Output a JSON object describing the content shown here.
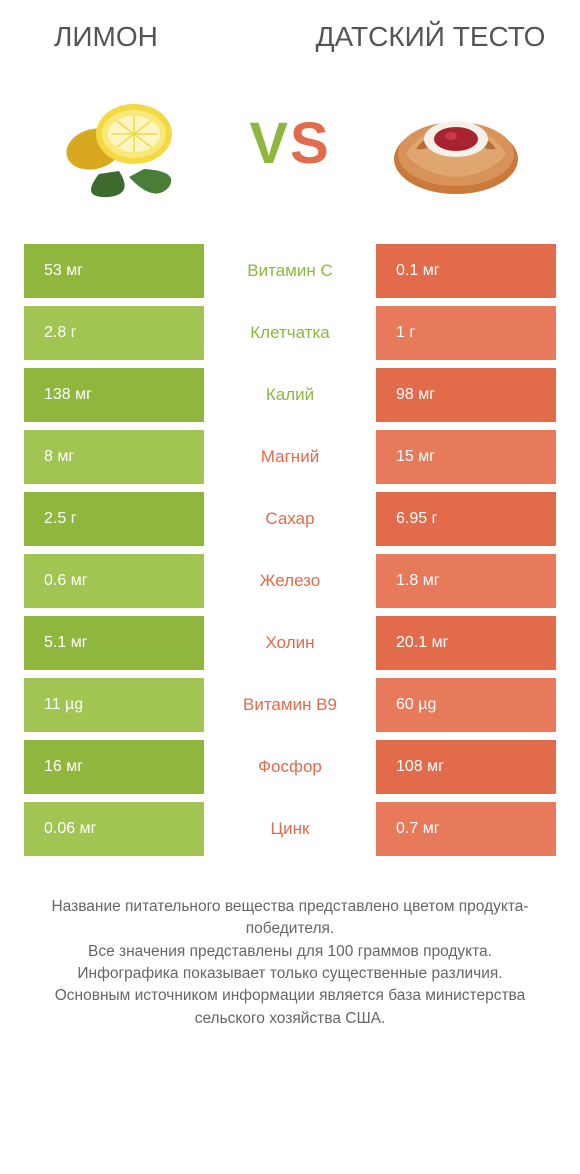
{
  "colors": {
    "left_primary": "#8fb73e",
    "left_alt": "#a1c452",
    "right_primary": "#e16b4a",
    "right_alt": "#e67a5b",
    "mid_left": "#8fb73e",
    "mid_right": "#e16b4a",
    "text": "#555555"
  },
  "header": {
    "left_title": "ЛИМОН",
    "right_title": "ДАТСКИЙ ТЕСТО"
  },
  "vs_label": "VS",
  "rows": [
    {
      "left": "53 мг",
      "mid": "Витамин C",
      "right": "0.1 мг",
      "winner": "left"
    },
    {
      "left": "2.8 г",
      "mid": "Клетчатка",
      "right": "1 г",
      "winner": "left"
    },
    {
      "left": "138 мг",
      "mid": "Калий",
      "right": "98 мг",
      "winner": "left"
    },
    {
      "left": "8 мг",
      "mid": "Магний",
      "right": "15 мг",
      "winner": "right"
    },
    {
      "left": "2.5 г",
      "mid": "Сахар",
      "right": "6.95 г",
      "winner": "right"
    },
    {
      "left": "0.6 мг",
      "mid": "Железо",
      "right": "1.8 мг",
      "winner": "right"
    },
    {
      "left": "5.1 мг",
      "mid": "Холин",
      "right": "20.1 мг",
      "winner": "right"
    },
    {
      "left": "11 µg",
      "mid": "Витамин B9",
      "right": "60 µg",
      "winner": "right"
    },
    {
      "left": "16 мг",
      "mid": "Фосфор",
      "right": "108 мг",
      "winner": "right"
    },
    {
      "left": "0.06 мг",
      "mid": "Цинк",
      "right": "0.7 мг",
      "winner": "right"
    }
  ],
  "footer": {
    "line1": "Название питательного вещества представлено цветом продукта-победителя.",
    "line2": "Все значения представлены для 100 граммов продукта.",
    "line3": "Инфографика показывает только существенные различия.",
    "line4": "Основным источником информации является база министерства сельского хозяйства США."
  }
}
